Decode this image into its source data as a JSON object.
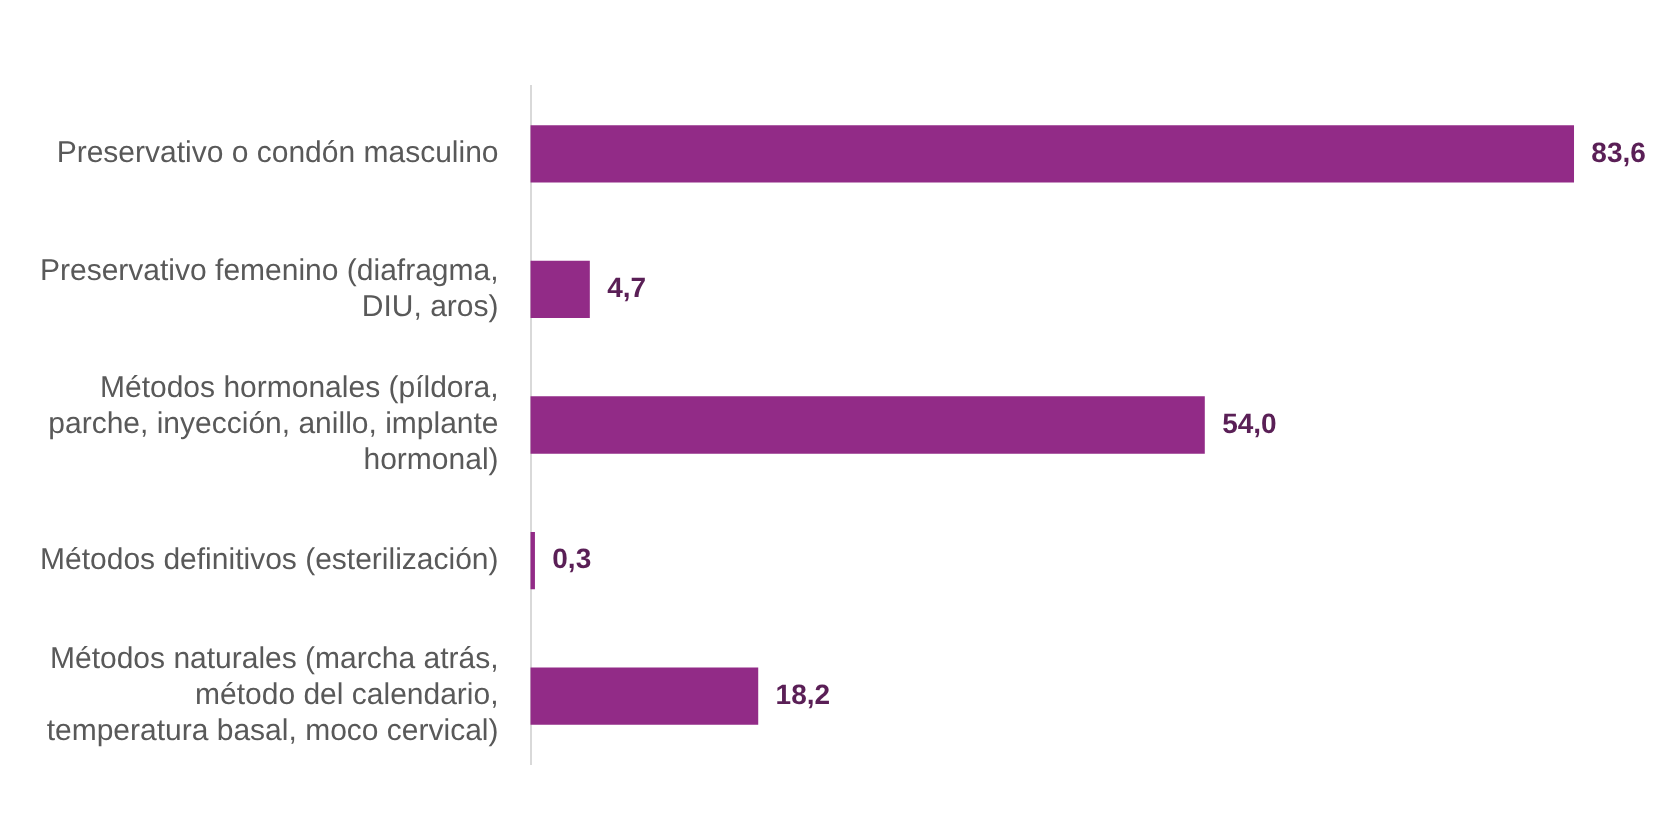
{
  "chart_data": {
    "type": "bar",
    "orientation": "horizontal",
    "categories": [
      "Preservativo o condón masculino",
      "Preservativo femenino (diafragma, DIU, aros)",
      "Métodos hormonales (píldora, parche, inyección, anillo, implante hormonal)",
      "Métodos definitivos (esterilización)",
      "Métodos naturales (marcha atrás, método del calendario, temperatura basal, moco cervical)"
    ],
    "values": [
      83.6,
      4.7,
      54.0,
      0.3,
      18.2
    ],
    "value_labels": [
      "83,6",
      "4,7",
      "54,0",
      "0,3",
      "18,2"
    ],
    "color": "#922b87"
  }
}
